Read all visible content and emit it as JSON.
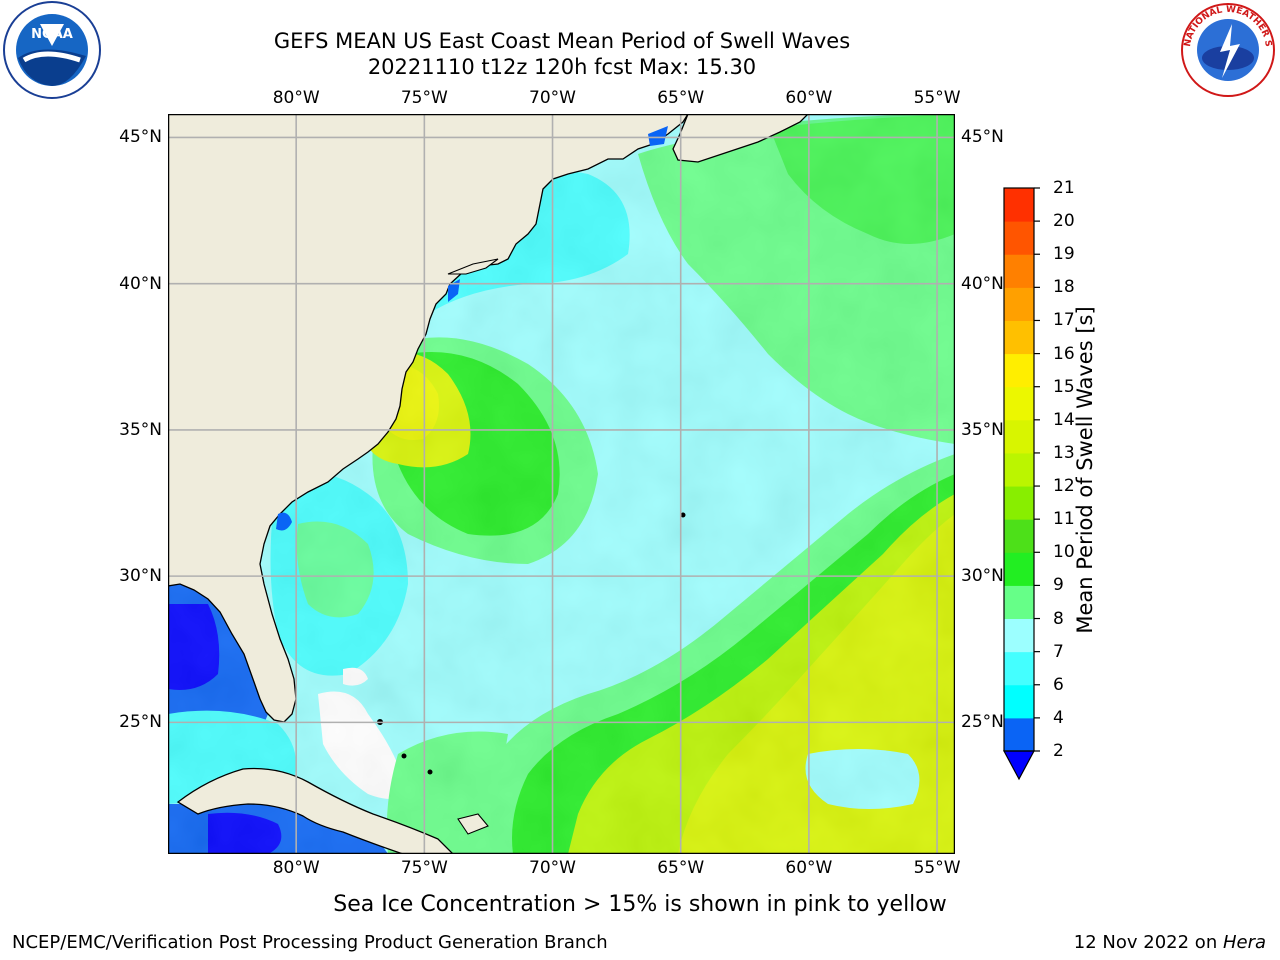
{
  "title": {
    "line1": "GEFS MEAN US East Coast Mean Period of Swell Waves",
    "line2": "20221110 t12z 120h fcst   Max: 15.30"
  },
  "logos": {
    "left": {
      "name": "noaa-logo",
      "text": "NOAA"
    },
    "right": {
      "name": "nws-logo",
      "text": "NATIONAL WEATHER SERVICE"
    }
  },
  "map": {
    "lon_labels": [
      "80°W",
      "75°W",
      "70°W",
      "65°W",
      "60°W",
      "55°W"
    ],
    "lat_labels": [
      "45°N",
      "40°N",
      "35°N",
      "30°N",
      "25°N"
    ],
    "lon_range": [
      -85,
      -54.3
    ],
    "lat_range": [
      20.5,
      45.8
    ],
    "land_color": "#efecdc",
    "grid_color": "#b0b0b0"
  },
  "colorbar": {
    "label": "Mean Period of Swell Waves [s]",
    "ticks": [
      "2",
      "4",
      "6",
      "7",
      "8",
      "9",
      "10",
      "11",
      "12",
      "13",
      "14",
      "15",
      "16",
      "17",
      "18",
      "19",
      "20",
      "21"
    ],
    "colors": [
      "#0a64f5",
      "#00ffff",
      "#44ffff",
      "#9cffff",
      "#66ff88",
      "#22ee22",
      "#4de019",
      "#88ee00",
      "#bbf500",
      "#d8f500",
      "#ecf700",
      "#ffee00",
      "#ffc000",
      "#ffa000",
      "#ff8000",
      "#ff5500",
      "#ff3000",
      "#ff0000"
    ],
    "under_color": "#0000ff"
  },
  "caption": "Sea Ice Concentration > 15% is shown in pink to yellow",
  "footer": {
    "left": "NCEP/EMC/Verification Post Processing Product Generation Branch",
    "right_date": "12 Nov 2022 on ",
    "right_host": "Hera"
  }
}
